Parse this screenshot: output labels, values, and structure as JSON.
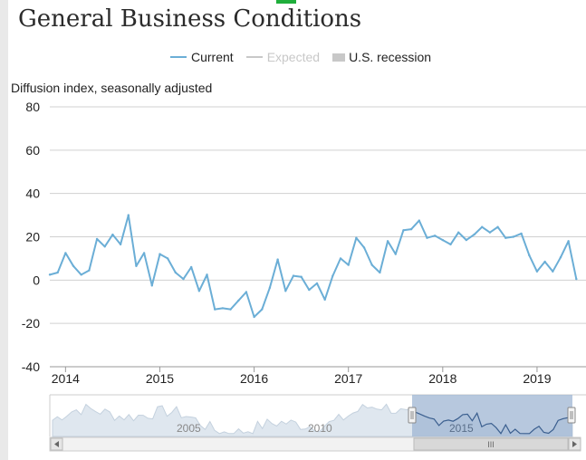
{
  "page": {
    "title": "General Business Conditions",
    "ylabel": "Diffusion index, seasonally adjusted"
  },
  "legend": [
    {
      "label": "Current",
      "color": "#6baed6",
      "kind": "line"
    },
    {
      "label": "Expected",
      "color": "#c8c8c8",
      "kind": "line"
    },
    {
      "label": "U.S. recession",
      "color": "#c8c8c8",
      "kind": "box"
    }
  ],
  "navigator": {
    "labels": [
      "2005",
      "2010",
      "2015"
    ],
    "scroll_grip": "III",
    "left_arrow_icon": "arrow-left-icon",
    "right_arrow_icon": "arrow-right-icon"
  },
  "chart_data": {
    "type": "line",
    "title": "General Business Conditions",
    "xlabel": "",
    "ylabel": "Diffusion index, seasonally adjusted",
    "xlim": [
      "2013-11",
      "2019-07"
    ],
    "ylim": [
      -40,
      80
    ],
    "yticks": [
      80,
      60,
      40,
      20,
      0,
      -20,
      -40
    ],
    "xticks": [
      "2014",
      "2015",
      "2016",
      "2017",
      "2018",
      "2019"
    ],
    "grid": true,
    "legend_position": "top-center",
    "series": [
      {
        "name": "Current",
        "color": "#6baed6",
        "points": [
          [
            "2013-11",
            2.5
          ],
          [
            "2013-12",
            3.5
          ],
          [
            "2014-01",
            12.5
          ],
          [
            "2014-02",
            6.5
          ],
          [
            "2014-03",
            2.5
          ],
          [
            "2014-04",
            4.5
          ],
          [
            "2014-05",
            19.0
          ],
          [
            "2014-06",
            15.5
          ],
          [
            "2014-07",
            21.0
          ],
          [
            "2014-08",
            16.5
          ],
          [
            "2014-09",
            30.0
          ],
          [
            "2014-10",
            6.5
          ],
          [
            "2014-11",
            12.5
          ],
          [
            "2014-12",
            -2.5
          ],
          [
            "2015-01",
            12.0
          ],
          [
            "2015-02",
            10.0
          ],
          [
            "2015-03",
            3.5
          ],
          [
            "2015-04",
            0.5
          ],
          [
            "2015-05",
            6.0
          ],
          [
            "2015-06",
            -5.0
          ],
          [
            "2015-07",
            2.5
          ],
          [
            "2015-08",
            -13.5
          ],
          [
            "2015-09",
            -13.0
          ],
          [
            "2015-10",
            -13.5
          ],
          [
            "2015-11",
            -9.5
          ],
          [
            "2015-12",
            -5.5
          ],
          [
            "2016-01",
            -17.0
          ],
          [
            "2016-02",
            -13.5
          ],
          [
            "2016-03",
            -3.5
          ],
          [
            "2016-04",
            9.5
          ],
          [
            "2016-05",
            -5.0
          ],
          [
            "2016-06",
            2.0
          ],
          [
            "2016-07",
            1.5
          ],
          [
            "2016-08",
            -4.5
          ],
          [
            "2016-09",
            -1.5
          ],
          [
            "2016-10",
            -9.0
          ],
          [
            "2016-11",
            2.0
          ],
          [
            "2016-12",
            10.0
          ],
          [
            "2017-01",
            7.0
          ],
          [
            "2017-02",
            19.5
          ],
          [
            "2017-03",
            15.0
          ],
          [
            "2017-04",
            7.0
          ],
          [
            "2017-05",
            3.5
          ],
          [
            "2017-06",
            18.0
          ],
          [
            "2017-07",
            12.0
          ],
          [
            "2017-08",
            23.0
          ],
          [
            "2017-09",
            23.5
          ],
          [
            "2017-10",
            27.5
          ],
          [
            "2017-11",
            19.5
          ],
          [
            "2017-12",
            20.5
          ],
          [
            "2018-01",
            18.5
          ],
          [
            "2018-02",
            16.5
          ],
          [
            "2018-03",
            22.0
          ],
          [
            "2018-04",
            18.5
          ],
          [
            "2018-05",
            21.0
          ],
          [
            "2018-06",
            24.5
          ],
          [
            "2018-07",
            22.0
          ],
          [
            "2018-08",
            24.5
          ],
          [
            "2018-09",
            19.5
          ],
          [
            "2018-10",
            20.0
          ],
          [
            "2018-11",
            21.5
          ],
          [
            "2018-12",
            11.5
          ],
          [
            "2019-01",
            4.0
          ],
          [
            "2019-02",
            8.5
          ],
          [
            "2019-03",
            4.0
          ],
          [
            "2019-04",
            10.5
          ],
          [
            "2019-05",
            18.0
          ],
          [
            "2019-06",
            0.5
          ]
        ]
      }
    ]
  }
}
